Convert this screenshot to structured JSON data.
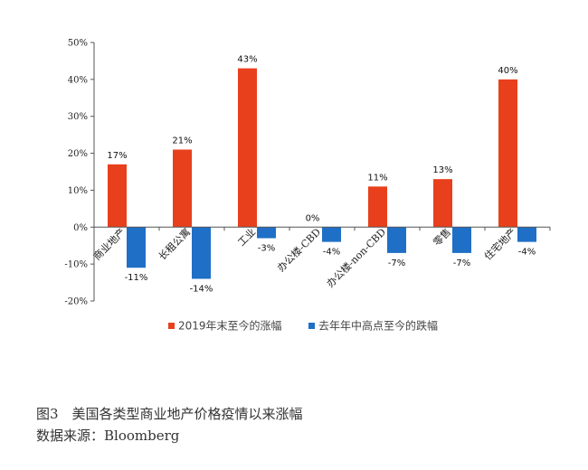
{
  "chart_data": {
    "type": "bar",
    "categories": [
      "商业地产",
      "长租公寓",
      "工业",
      "办公楼-CBD",
      "办公楼-non-CBD",
      "零售",
      "住宅地产"
    ],
    "series": [
      {
        "name": "2019年末至今的涨幅",
        "color": "#E8401C",
        "values": [
          17,
          21,
          43,
          0,
          11,
          13,
          40
        ],
        "labels": [
          "17%",
          "21%",
          "43%",
          "0%",
          "11%",
          "13%",
          "40%"
        ]
      },
      {
        "name": "去年年中高点至今的跌幅",
        "color": "#1F6FC6",
        "values": [
          -11,
          -14,
          -3,
          -4,
          -7,
          -7,
          -4
        ],
        "labels": [
          "-11%",
          "-14%",
          "-3%",
          "-4%",
          "-7%",
          "-7%",
          "-4%"
        ]
      }
    ],
    "yticks": [
      50,
      40,
      30,
      20,
      10,
      0,
      -10,
      -20
    ],
    "ytick_labels": [
      "50%",
      "40%",
      "30%",
      "20%",
      "10%",
      "0%",
      "-10%",
      "-20%"
    ],
    "ylim": [
      -20,
      50
    ],
    "grid": false,
    "legend_position": "bottom"
  },
  "caption": {
    "title": "图3　美国各类型商业地产价格疫情以来涨幅",
    "source": "数据来源：Bloomberg"
  }
}
